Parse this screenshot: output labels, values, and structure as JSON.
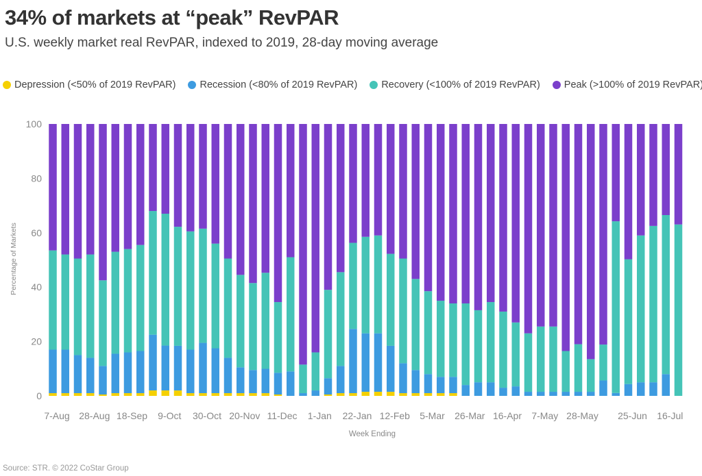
{
  "title": "34% of markets at “peak” RevPAR",
  "subtitle": "U.S. weekly market real RevPAR, indexed to 2019, 28-day moving average",
  "source": "Source: STR. © 2022 CoStar Group",
  "legend": [
    {
      "label": "Depression (<50% of 2019 RevPAR)",
      "color": "#f5d000"
    },
    {
      "label": "Recession (<80% of 2019 RevPAR)",
      "color": "#3d9be0"
    },
    {
      "label": "Recovery (<100% of 2019 RevPAR)",
      "color": "#45c4b7"
    },
    {
      "label": "Peak (>100% of 2019 RevPAR)",
      "color": "#7b3fcb"
    }
  ],
  "chart_data": {
    "type": "bar",
    "stacked": true,
    "xlabel": "Week Ending",
    "ylabel": "Percentage of Markets",
    "ylim": [
      0,
      100
    ],
    "yticks": [
      0,
      20,
      40,
      60,
      80,
      100
    ],
    "x_tick_labels": [
      "7-Aug",
      "28-Aug",
      "18-Sep",
      "9-Oct",
      "30-Oct",
      "20-Nov",
      "11-Dec",
      "1-Jan",
      "22-Jan",
      "12-Feb",
      "5-Mar",
      "26-Mar",
      "16-Apr",
      "7-May",
      "28-May",
      "25-Jun",
      "16-Jul"
    ],
    "x_tick_positions": [
      0,
      3,
      6,
      9,
      12,
      15,
      18,
      21,
      24,
      27,
      30,
      33,
      36,
      39,
      42,
      46,
      49
    ],
    "legend_position": "top",
    "grid": false,
    "series": [
      {
        "name": "Depression (<50% of 2019 RevPAR)",
        "color": "#f5d000",
        "values": [
          1,
          1,
          1,
          1,
          0.5,
          1,
          1,
          1,
          2,
          2,
          2,
          1,
          1,
          1,
          1,
          1,
          1,
          1,
          0.5,
          0,
          0,
          0,
          0.5,
          1,
          1,
          1.5,
          1.5,
          1.5,
          1,
          1,
          1,
          1,
          1,
          0,
          0,
          0,
          0,
          0,
          0,
          0,
          0,
          0,
          0,
          0,
          0,
          0,
          0,
          0,
          0,
          0,
          0,
          0
        ]
      },
      {
        "name": "Recession (<80% of 2019 RevPAR)",
        "color": "#3d9be0",
        "values": [
          16,
          16,
          14,
          13,
          10.5,
          14.5,
          15,
          15.5,
          20.5,
          16.5,
          16.5,
          16,
          18.5,
          16.5,
          13,
          9.5,
          8.5,
          9,
          8,
          9,
          1,
          2,
          6,
          10,
          23.5,
          21.5,
          21.5,
          17,
          11,
          8.5,
          7,
          6,
          6,
          4,
          5,
          5,
          3,
          3.5,
          1.5,
          1.5,
          1.5,
          1.5,
          1.5,
          1.5,
          6,
          1,
          4.5,
          5,
          5,
          8,
          0,
          0
        ]
      },
      {
        "name": "Recovery (<100% of 2019 RevPAR)",
        "color": "#45c4b7",
        "values": [
          36.5,
          35,
          35.5,
          38,
          31.5,
          37.5,
          38,
          39,
          45.5,
          48.5,
          44,
          43.5,
          42,
          38.5,
          36.5,
          34,
          32,
          35.5,
          26,
          42,
          10.5,
          14,
          32.5,
          34.5,
          31.5,
          35.5,
          36,
          34,
          38.5,
          33.5,
          30.5,
          28,
          27,
          30,
          26.5,
          29.5,
          28,
          23.5,
          21.5,
          24,
          24,
          15,
          17.5,
          12,
          14,
          60,
          47.5,
          54,
          57.5,
          58.5,
          58,
          0
        ]
      },
      {
        "name": "Peak (>100% of 2019 RevPAR)",
        "color": "#7b3fcb",
        "values": [
          46.5,
          48,
          49.5,
          48,
          57.5,
          47,
          46,
          44.5,
          32,
          33,
          38,
          39.5,
          38.5,
          44,
          49.5,
          55.5,
          58.5,
          55,
          65.5,
          49,
          88.5,
          84,
          61,
          54.5,
          43.5,
          41.5,
          41,
          48,
          49.5,
          57,
          61.5,
          65,
          66,
          66,
          68.5,
          65.5,
          69,
          73,
          77,
          74.5,
          74.5,
          83.5,
          81,
          86.5,
          86,
          34,
          51.5,
          41,
          37.5,
          33.5,
          34,
          0
        ]
      }
    ]
  }
}
